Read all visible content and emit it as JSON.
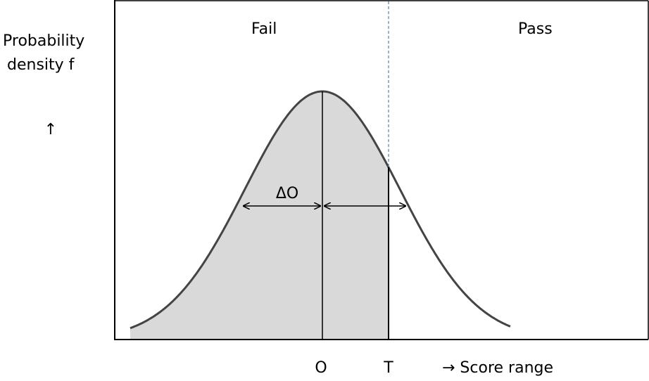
{
  "regions": {
    "left": "Fail",
    "right": "Pass"
  },
  "y_axis_label": {
    "lines": [
      "Probability",
      "density f"
    ],
    "arrow": "↑"
  },
  "spread_label": "ΔO",
  "x_markers": {
    "mean": "O",
    "threshold": "T"
  },
  "x_axis_label": "→ Score range"
}
